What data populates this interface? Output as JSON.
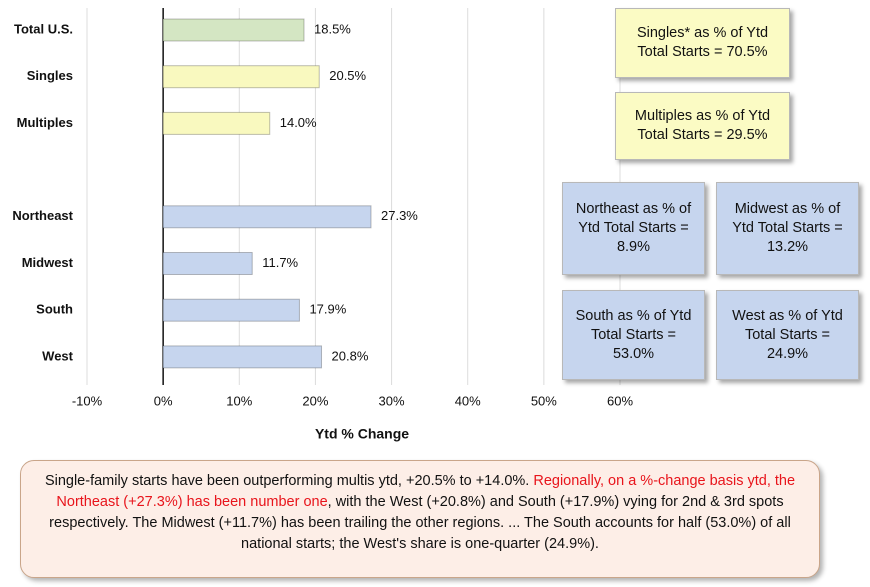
{
  "chart_data": {
    "type": "barh",
    "categories": [
      "Total U.S.",
      "Singles",
      "Multiples",
      null,
      "Northeast",
      "Midwest",
      "South",
      "West"
    ],
    "values": [
      18.5,
      20.5,
      14.0,
      null,
      27.3,
      11.7,
      17.9,
      20.8
    ],
    "value_labels": [
      "18.5%",
      "20.5%",
      "14.0%",
      null,
      "27.3%",
      "11.7%",
      "17.9%",
      "20.8%"
    ],
    "colors": [
      "#d4e6c3",
      "#f9f9bf",
      "#f9f9bf",
      null,
      "#c6d5ee",
      "#c6d5ee",
      "#c6d5ee",
      "#c6d5ee"
    ],
    "xlim": [
      -10,
      60
    ],
    "xticks": [
      {
        "value": -10,
        "label": "-10%"
      },
      {
        "value": 0,
        "label": "0%"
      },
      {
        "value": 10,
        "label": "10%"
      },
      {
        "value": 20,
        "label": "20%"
      },
      {
        "value": 30,
        "label": "30%"
      },
      {
        "value": 40,
        "label": "40%"
      },
      {
        "value": 50,
        "label": "50%"
      },
      {
        "value": 60,
        "label": "60%"
      }
    ],
    "grid": true,
    "xlabel": "Ytd % Change",
    "annotations": [
      {
        "lines": [
          "Singles* as % of Ytd",
          "Total Starts = 70.5%"
        ],
        "color": "#fbfbc4"
      },
      {
        "lines": [
          "Multiples as % of Ytd",
          "Total Starts = 29.5%"
        ],
        "color": "#fbfbc4"
      },
      {
        "lines": [
          "Northeast as % of",
          "Ytd Total Starts =",
          "8.9%"
        ],
        "color": "#c6d5ee"
      },
      {
        "lines": [
          "Midwest as % of",
          "Ytd Total Starts =",
          "13.2%"
        ],
        "color": "#c6d5ee"
      },
      {
        "lines": [
          "South as % of Ytd",
          "Total Starts =",
          "53.0%"
        ],
        "color": "#c6d5ee"
      },
      {
        "lines": [
          "West as % of Ytd",
          "Total Starts =",
          "24.9%"
        ],
        "color": "#c6d5ee"
      }
    ],
    "note": [
      {
        "text": "Single-family starts have been outperforming multis ytd, +20.5% to +14.0%. ",
        "color": "#111111"
      },
      {
        "text": "Regionally, on a %-change basis ytd, the Northeast (+27.3%) has been number one",
        "color": "#e8141b"
      },
      {
        "text": ", with the West (+20.8%) and South (+17.9%) vying for 2nd & 3rd spots respectively. The Midwest (+11.7%) has been trailing the other regions. ... The South accounts for half (53.0%) of all national starts; the West's share is one-quarter (24.9%).",
        "color": "#111111"
      }
    ]
  }
}
